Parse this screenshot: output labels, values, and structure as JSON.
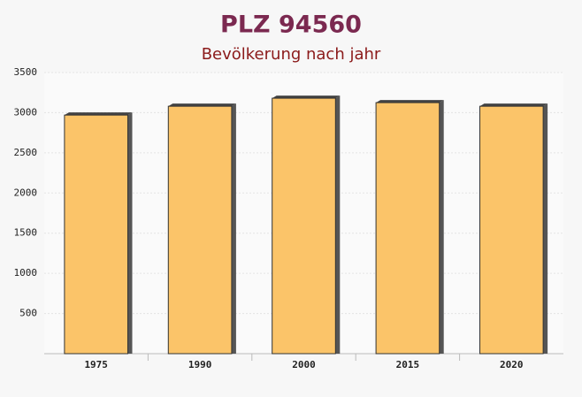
{
  "chart_data": {
    "type": "bar",
    "title": "PLZ 94560",
    "subtitle": "Bevölkerung nach jahr",
    "categories": [
      "1975",
      "1990",
      "2000",
      "2015",
      "2020"
    ],
    "values": [
      2970,
      3080,
      3180,
      3125,
      3080
    ],
    "color": "#fbc469",
    "ylim": [
      0,
      3500
    ],
    "yticks": [
      500,
      1000,
      1500,
      2000,
      2500,
      3000,
      3500
    ],
    "grid": true
  }
}
